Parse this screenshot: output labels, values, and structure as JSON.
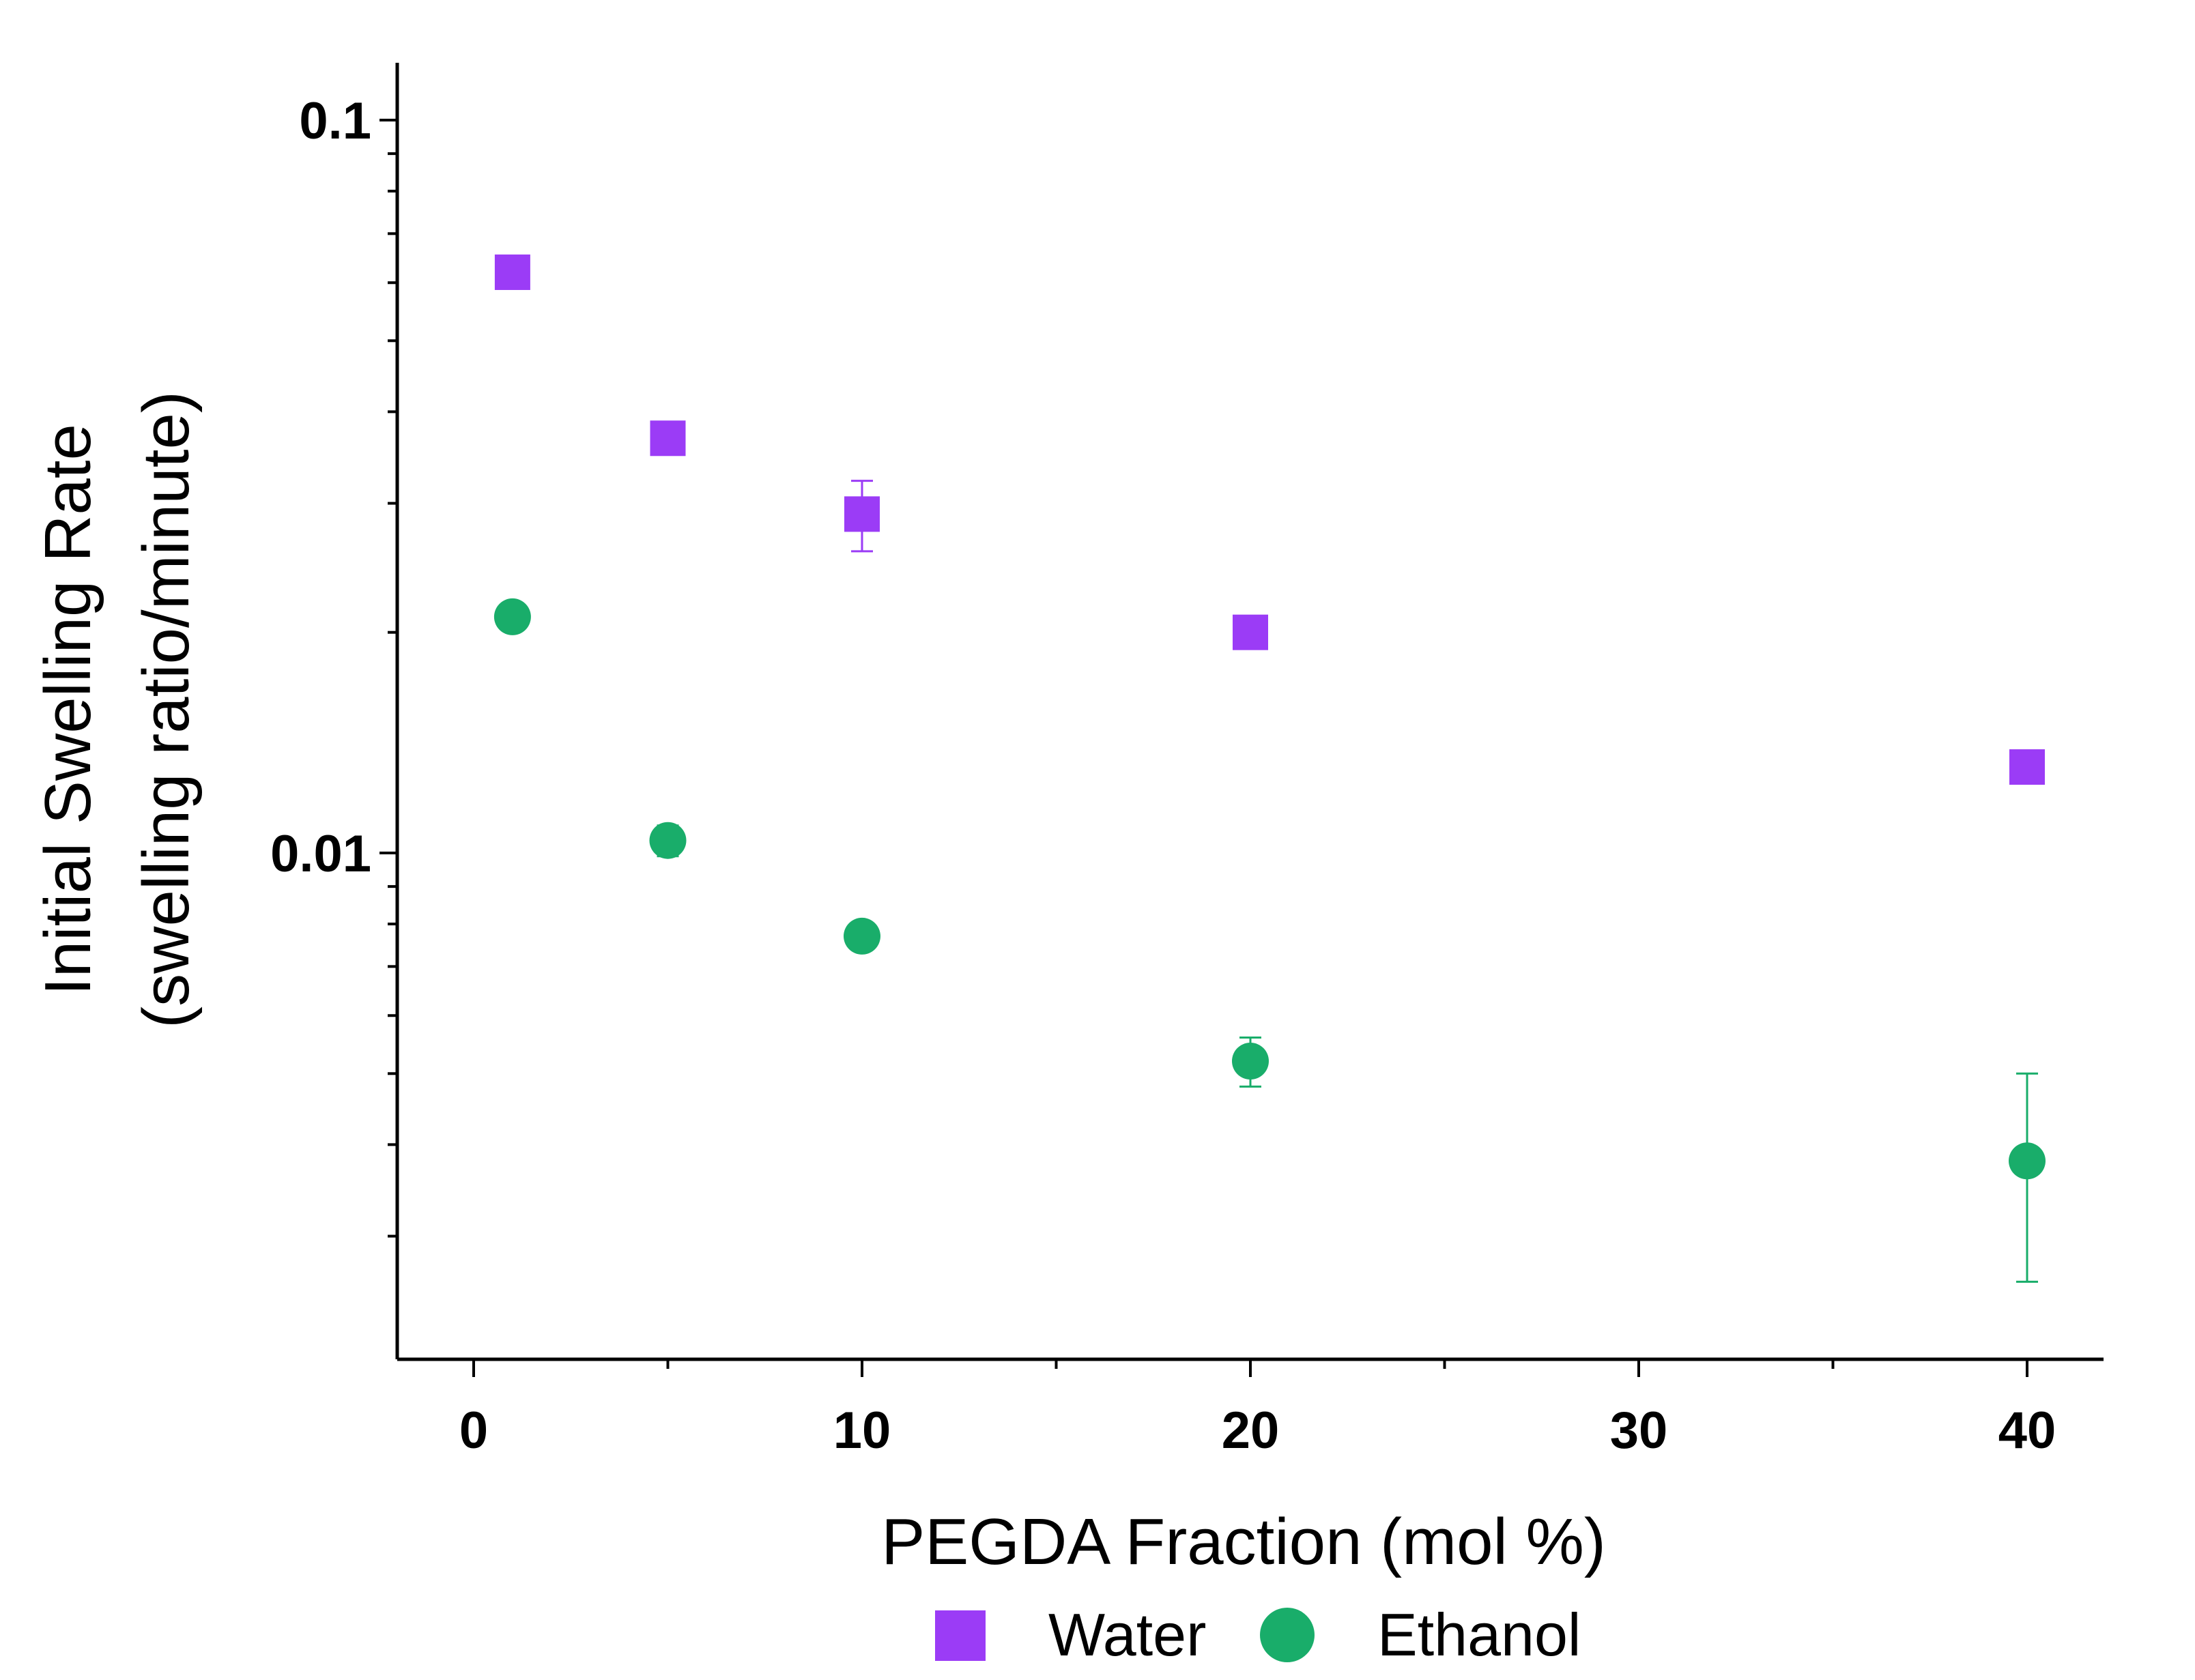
{
  "chart_data": {
    "type": "scatter",
    "title": "",
    "xlabel": "PEGDA Fraction (mol %)",
    "ylabel_line1": "Initial Swelling Rate",
    "ylabel_line2": "(swelling ratio/minute)",
    "xlim": [
      -2,
      42
    ],
    "ylim": [
      0.002,
      0.12
    ],
    "yscale": "log",
    "x_ticks": [
      {
        "value": 0,
        "label": "0"
      },
      {
        "value": 10,
        "label": "10"
      },
      {
        "value": 20,
        "label": "20"
      },
      {
        "value": 30,
        "label": "30"
      },
      {
        "value": 40,
        "label": "40"
      }
    ],
    "x_minor_ticks": [
      5,
      15,
      25,
      35
    ],
    "y_ticks": [
      {
        "value": 0.1,
        "label": "0.1"
      },
      {
        "value": 0.01,
        "label": "0.01"
      }
    ],
    "y_minor_ticks": [
      0.003,
      0.004,
      0.005,
      0.006,
      0.007,
      0.008,
      0.009,
      0.02,
      0.03,
      0.04,
      0.05,
      0.06,
      0.07,
      0.08,
      0.09
    ],
    "legend_position": "bottom",
    "series": [
      {
        "name": "Water",
        "marker": "square",
        "color": "#9b3cf6",
        "points": [
          {
            "x": 1,
            "y": 0.062,
            "err": 0.0008
          },
          {
            "x": 5,
            "y": 0.0368,
            "err": 0.0006
          },
          {
            "x": 10,
            "y": 0.029,
            "err": 0.0032
          },
          {
            "x": 20,
            "y": 0.02,
            "err": 0.0004
          },
          {
            "x": 40,
            "y": 0.0131,
            "err": 0.0003
          }
        ]
      },
      {
        "name": "Ethanol",
        "marker": "circle",
        "color": "#19ad6a",
        "points": [
          {
            "x": 1,
            "y": 0.021,
            "err": 0.0003
          },
          {
            "x": 5,
            "y": 0.0104,
            "err": 0.0005
          },
          {
            "x": 10,
            "y": 0.0077,
            "err": 0.0002
          },
          {
            "x": 20,
            "y": 0.0052,
            "err": 0.0004
          },
          {
            "x": 40,
            "y": 0.0038,
            "err": 0.0012
          }
        ]
      }
    ]
  }
}
